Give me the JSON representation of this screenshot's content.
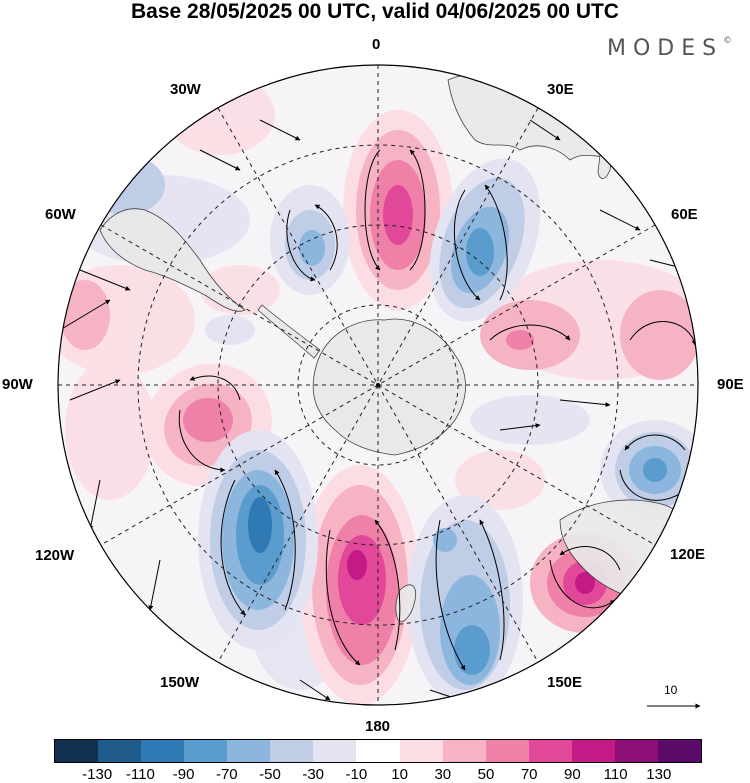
{
  "title": "Base 28/05/2025 00 UTC, valid 04/06/2025 00 UTC",
  "logo": "MODES",
  "logo_mark": "©",
  "longitude_labels": {
    "n0": "0",
    "e30": "30E",
    "e60": "60E",
    "e90": "90E",
    "e120": "120E",
    "e150": "150E",
    "s180": "180",
    "w150": "150W",
    "w120": "120W",
    "w90": "90W",
    "w60": "60W",
    "w30": "30W"
  },
  "reference_vector": "10",
  "colorbar": {
    "colors": [
      "#12304f",
      "#1f5b8b",
      "#2f7ab4",
      "#5a9ccd",
      "#8cb6dd",
      "#bfcde6",
      "#e4e3f1",
      "#ffffff",
      "#fbdde3",
      "#f6b3c4",
      "#ef80a8",
      "#e2489a",
      "#c41a86",
      "#8d0f77",
      "#5b0a69"
    ],
    "tick_labels": [
      "-130",
      "-110",
      "-90",
      "-70",
      "-50",
      "-30",
      "-10",
      "10",
      "30",
      "50",
      "70",
      "90",
      "110",
      "130"
    ]
  },
  "colors": {
    "land": "#e9e9e9",
    "border": "#000000"
  }
}
